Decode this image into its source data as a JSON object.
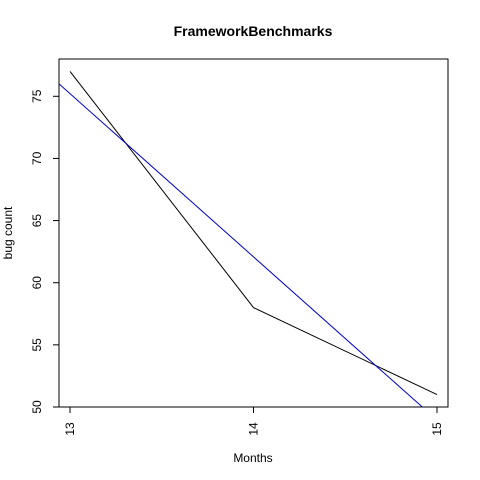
{
  "chart_data": {
    "type": "line",
    "title": "FrameworkBenchmarks",
    "xlabel": "Months",
    "ylabel": "bug count",
    "xlim": [
      12.94,
      15.06
    ],
    "ylim": [
      50,
      78
    ],
    "x_ticks": [
      13,
      14,
      15
    ],
    "y_ticks": [
      50,
      55,
      60,
      65,
      70,
      75
    ],
    "grid": false,
    "legend": "none",
    "series": [
      {
        "color": "#000000",
        "x": [
          13,
          14,
          15
        ],
        "y": [
          77,
          58,
          51
        ]
      },
      {
        "color": "#0000cc",
        "kind": "trend",
        "x": [
          12.94,
          14.92
        ],
        "y": [
          76.0,
          50.0
        ]
      }
    ]
  }
}
